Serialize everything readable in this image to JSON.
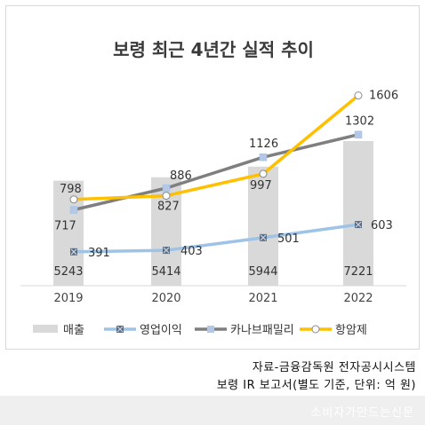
{
  "chart_data": {
    "type": "bar+line",
    "title": "보령 최근 4년간 실적 추이",
    "categories": [
      "2019",
      "2020",
      "2021",
      "2022"
    ],
    "bars": {
      "name": "매출",
      "values": [
        5243,
        5414,
        5944,
        7221
      ],
      "labels": [
        "5243",
        "5414",
        "5944",
        "7221"
      ],
      "color": "#d9d9d9"
    },
    "series": [
      {
        "name": "영업이익",
        "values": [
          391,
          403,
          501,
          603
        ],
        "labels": [
          "391",
          "403",
          "501",
          "603"
        ],
        "color": "#9dc3e6",
        "marker": "square-x"
      },
      {
        "name": "카나브패밀리",
        "values": [
          717,
          886,
          1126,
          1302
        ],
        "labels": [
          "717",
          "886",
          "1126",
          "1302"
        ],
        "color": "#7f7f7f",
        "marker": "square"
      },
      {
        "name": "항암제",
        "values": [
          798,
          827,
          997,
          1606
        ],
        "labels": [
          "798",
          "827",
          "997",
          "1606"
        ],
        "color": "#ffc000",
        "marker": "circle"
      }
    ],
    "legend_position": "bottom",
    "grid": false
  },
  "source": {
    "line1": "자료-금융감독원 전자공시시스템",
    "line2": "보령 IR 보고서(별도 기준, 단위: 억 원)"
  },
  "watermark": "소비자가만드는신문"
}
